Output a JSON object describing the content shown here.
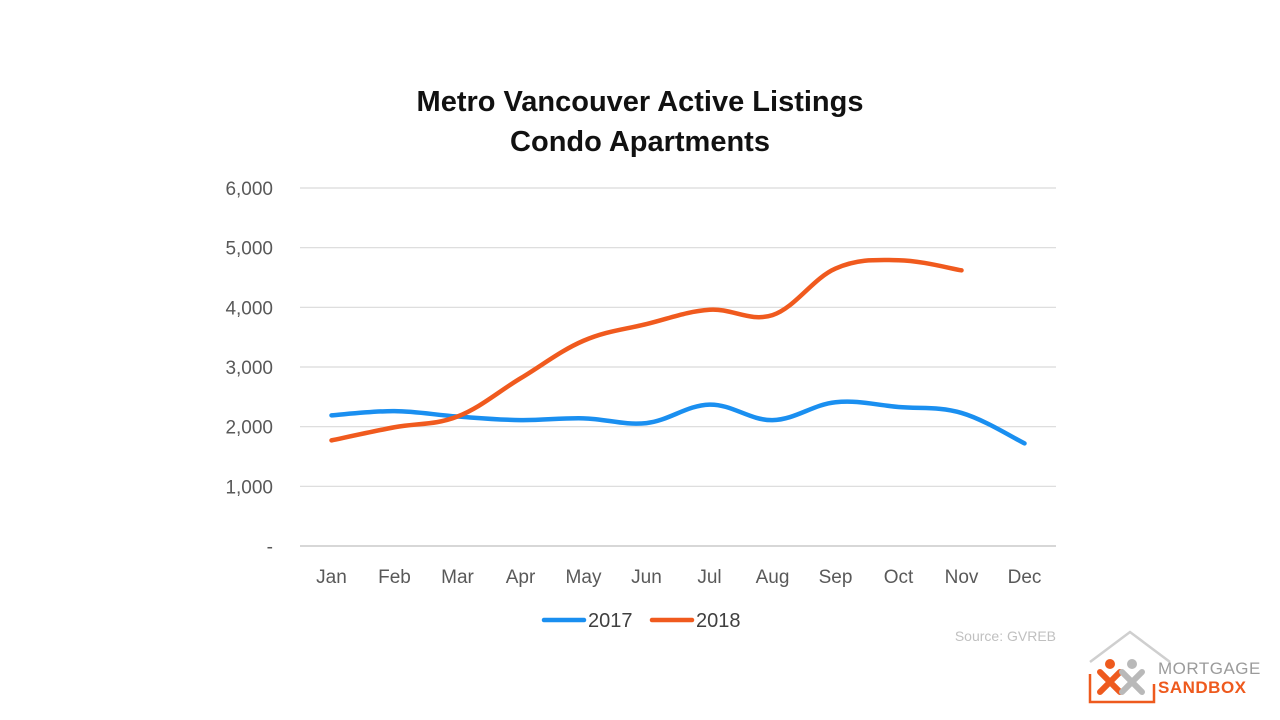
{
  "chart_data": {
    "type": "line",
    "title": "Metro Vancouver Active Listings",
    "subtitle": "Condo Apartments",
    "categories": [
      "Jan",
      "Feb",
      "Mar",
      "Apr",
      "May",
      "Jun",
      "Jul",
      "Aug",
      "Sep",
      "Oct",
      "Nov",
      "Dec"
    ],
    "series": [
      {
        "name": "2017",
        "color": "#1a8ff0",
        "values": [
          2190,
          2260,
          2170,
          2110,
          2140,
          2060,
          2370,
          2110,
          2410,
          2330,
          2230,
          1720
        ]
      },
      {
        "name": "2018",
        "color": "#f05a1e",
        "values": [
          1770,
          1990,
          2170,
          2810,
          3440,
          3720,
          3960,
          3870,
          4650,
          4790,
          4620,
          null
        ]
      }
    ],
    "yticks": [
      "-",
      "1,000",
      "2,000",
      "3,000",
      "4,000",
      "5,000",
      "6,000"
    ],
    "ylim": [
      0,
      6000
    ],
    "grid": true,
    "legend": "bottom",
    "xlabel": "",
    "ylabel": ""
  },
  "source": "Source: GVREB",
  "logo": {
    "line1": "MORTGAGE",
    "line2": "SANDBOX"
  }
}
